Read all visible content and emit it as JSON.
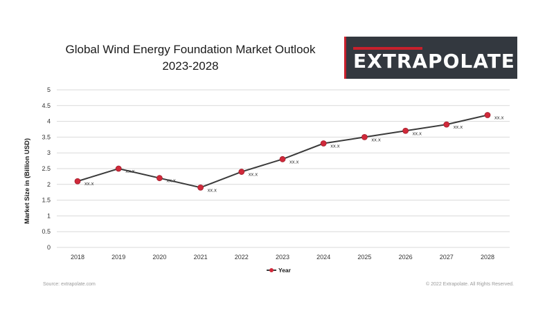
{
  "title_line1": "Global Wind Energy Foundation Market Outlook",
  "title_line2": "2023-2028",
  "logo_text": "EXTRAPOLATE",
  "footer": {
    "source": "Source: extrapolate.com",
    "copyright": "© 2022 Extrapolate. All Rights Reserved."
  },
  "colors": {
    "line": "#3a3a3a",
    "marker": "#d0293a",
    "grid": "#d9d9d9",
    "logo_bg": "#33383f",
    "logo_accent": "#c8202c"
  },
  "chart_data": {
    "type": "line",
    "title": "Global Wind Energy Foundation Market Outlook 2023-2028",
    "xlabel": "",
    "ylabel": "Market Size in (Billion USD)",
    "categories": [
      "2018",
      "2019",
      "2020",
      "2021",
      "2022",
      "2023",
      "2024",
      "2025",
      "2026",
      "2027",
      "2028"
    ],
    "series": [
      {
        "name": "Year",
        "values": [
          2.1,
          2.5,
          2.2,
          1.9,
          2.4,
          2.8,
          3.3,
          3.5,
          3.7,
          3.9,
          4.2
        ],
        "data_labels": [
          "xx.x",
          "xx.x",
          "xx.x",
          "xx.x",
          "xx.x",
          "xx.x",
          "xx.x",
          "xx.x",
          "xx.x",
          "xx.x",
          "xx.x"
        ]
      }
    ],
    "ylim": [
      0,
      5
    ],
    "yticks": [
      "0",
      "0.5",
      "1",
      "1.5",
      "2",
      "2.5",
      "3",
      "3.5",
      "4",
      "4.5",
      "5"
    ],
    "grid": true,
    "legend": "bottom"
  }
}
